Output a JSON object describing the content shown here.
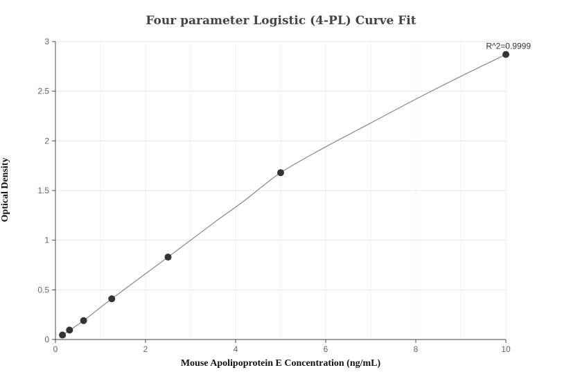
{
  "chart_data": {
    "type": "scatter",
    "title": "Four parameter Logistic (4-PL) Curve Fit",
    "xlabel": "Mouse Apolipoprotein E Concentration (ng/mL)",
    "ylabel": "Optical Density",
    "xlim": [
      0,
      10
    ],
    "ylim": [
      0,
      3
    ],
    "x_ticks": [
      0,
      2,
      4,
      6,
      8,
      10
    ],
    "y_ticks": [
      0,
      0.5,
      1,
      1.5,
      2,
      2.5,
      3
    ],
    "x_tick_labels": [
      "0",
      "2",
      "4",
      "6",
      "8",
      "10"
    ],
    "y_tick_labels": [
      "0",
      "0.5",
      "1",
      "1.5",
      "2",
      "2.5",
      "3"
    ],
    "grid": true,
    "series": [
      {
        "points": [
          {
            "x": 0.156,
            "y": 0.045
          },
          {
            "x": 0.313,
            "y": 0.095
          },
          {
            "x": 0.625,
            "y": 0.19
          },
          {
            "x": 1.25,
            "y": 0.41
          },
          {
            "x": 2.5,
            "y": 0.83
          },
          {
            "x": 5.0,
            "y": 1.68
          },
          {
            "x": 10.0,
            "y": 2.87
          }
        ],
        "color": "#333333"
      }
    ],
    "fit_curve": {
      "x": [
        0.156,
        0.625,
        1.25,
        2.5,
        3.5,
        4.2,
        5.0,
        6.0,
        7.0,
        8.0,
        9.0,
        10.0
      ],
      "y": [
        0.045,
        0.19,
        0.41,
        0.83,
        1.17,
        1.4,
        1.68,
        1.94,
        2.18,
        2.42,
        2.65,
        2.87
      ],
      "color": "#888888"
    },
    "annotation": {
      "text": "R^2=0.9999",
      "x": 10.0,
      "y": 2.87
    }
  }
}
